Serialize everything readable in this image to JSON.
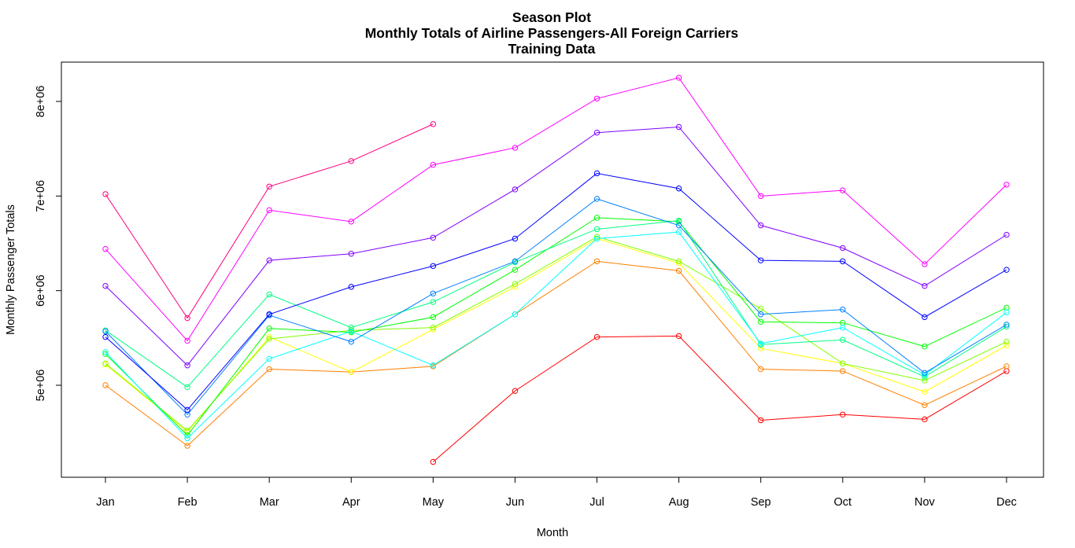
{
  "chart_data": {
    "type": "line",
    "title": [
      "Season Plot",
      "Monthly Totals of Airline Passengers-All Foreign Carriers",
      "Training Data"
    ],
    "xlabel": "Month",
    "ylabel": "Monthly Passenger Totals",
    "categories": [
      "Jan",
      "Feb",
      "Mar",
      "Apr",
      "May",
      "Jun",
      "Jul",
      "Aug",
      "Sep",
      "Oct",
      "Nov",
      "Dec"
    ],
    "ylim": [
      4150000,
      8400000
    ],
    "yticks": [
      5000000,
      6000000,
      7000000,
      8000000
    ],
    "ytick_labels": [
      "5e+06",
      "6e+06",
      "7e+06",
      "8e+06"
    ],
    "grid": false,
    "markers": "open-circle",
    "series": [
      {
        "color": "#FF0000",
        "values": [
          null,
          null,
          null,
          null,
          4190000,
          4940000,
          5510000,
          5520000,
          4630000,
          4690000,
          4640000,
          5150000
        ]
      },
      {
        "color": "#FF7F00",
        "values": [
          5000000,
          4360000,
          5170000,
          5140000,
          5200000,
          5750000,
          6310000,
          6210000,
          5170000,
          5150000,
          4790000,
          5200000
        ]
      },
      {
        "color": "#FFFF00",
        "values": [
          5220000,
          4510000,
          5510000,
          5140000,
          5590000,
          6040000,
          6550000,
          6290000,
          5390000,
          5230000,
          4930000,
          5420000
        ]
      },
      {
        "color": "#80FF00",
        "values": [
          5230000,
          4520000,
          5490000,
          5580000,
          5610000,
          6070000,
          6570000,
          6310000,
          5810000,
          5230000,
          5050000,
          5460000
        ]
      },
      {
        "color": "#00FF00",
        "values": [
          5330000,
          4470000,
          5600000,
          5560000,
          5720000,
          6220000,
          6770000,
          6730000,
          5670000,
          5660000,
          5410000,
          5820000
        ]
      },
      {
        "color": "#00FF80",
        "values": [
          5580000,
          4980000,
          5960000,
          5610000,
          5880000,
          6300000,
          6650000,
          6740000,
          5430000,
          5480000,
          5090000,
          5620000
        ]
      },
      {
        "color": "#00FFFF",
        "values": [
          5350000,
          4440000,
          5280000,
          5570000,
          5210000,
          5750000,
          6550000,
          6620000,
          5440000,
          5610000,
          5110000,
          5770000
        ]
      },
      {
        "color": "#0080FF",
        "values": [
          5570000,
          4690000,
          5740000,
          5460000,
          5970000,
          6310000,
          6970000,
          6690000,
          5750000,
          5800000,
          5130000,
          5640000
        ]
      },
      {
        "color": "#0000FF",
        "values": [
          5510000,
          4740000,
          5750000,
          6040000,
          6260000,
          6550000,
          7240000,
          7080000,
          6320000,
          6310000,
          5720000,
          6220000
        ]
      },
      {
        "color": "#8000FF",
        "values": [
          6050000,
          5210000,
          6320000,
          6390000,
          6560000,
          7070000,
          7670000,
          7730000,
          6690000,
          6450000,
          6050000,
          6590000
        ]
      },
      {
        "color": "#FF00FF",
        "values": [
          6440000,
          5470000,
          6850000,
          6730000,
          7330000,
          7510000,
          8030000,
          8250000,
          7000000,
          7060000,
          6280000,
          7120000
        ]
      },
      {
        "color": "#FF0080",
        "values": [
          7020000,
          5710000,
          7100000,
          7370000,
          7760000,
          null,
          null,
          null,
          null,
          null,
          null,
          null
        ]
      }
    ]
  }
}
